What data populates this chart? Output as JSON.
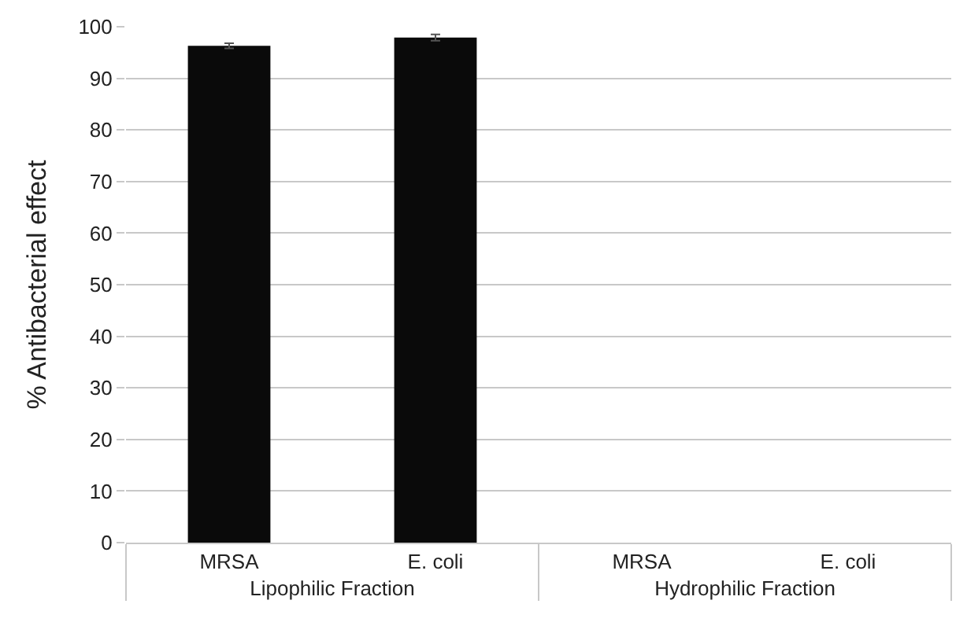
{
  "chart_data": {
    "type": "bar",
    "ylabel": "% Antibacterial effect",
    "categories": [
      "MRSA",
      "E. coli",
      "MRSA",
      "E. coli"
    ],
    "values": [
      96.3,
      97.9,
      null,
      null
    ],
    "errors": [
      0.5,
      0.6,
      null,
      null
    ],
    "color": "#0a0a0a",
    "annotations": [
      "Lipophilic Fraction",
      "Hydrophilic Fraction"
    ],
    "ylim": [
      0,
      100
    ],
    "yticks": [
      0,
      10,
      20,
      30,
      40,
      50,
      60,
      70,
      80,
      90,
      100
    ],
    "grid": "y",
    "legend": false
  }
}
